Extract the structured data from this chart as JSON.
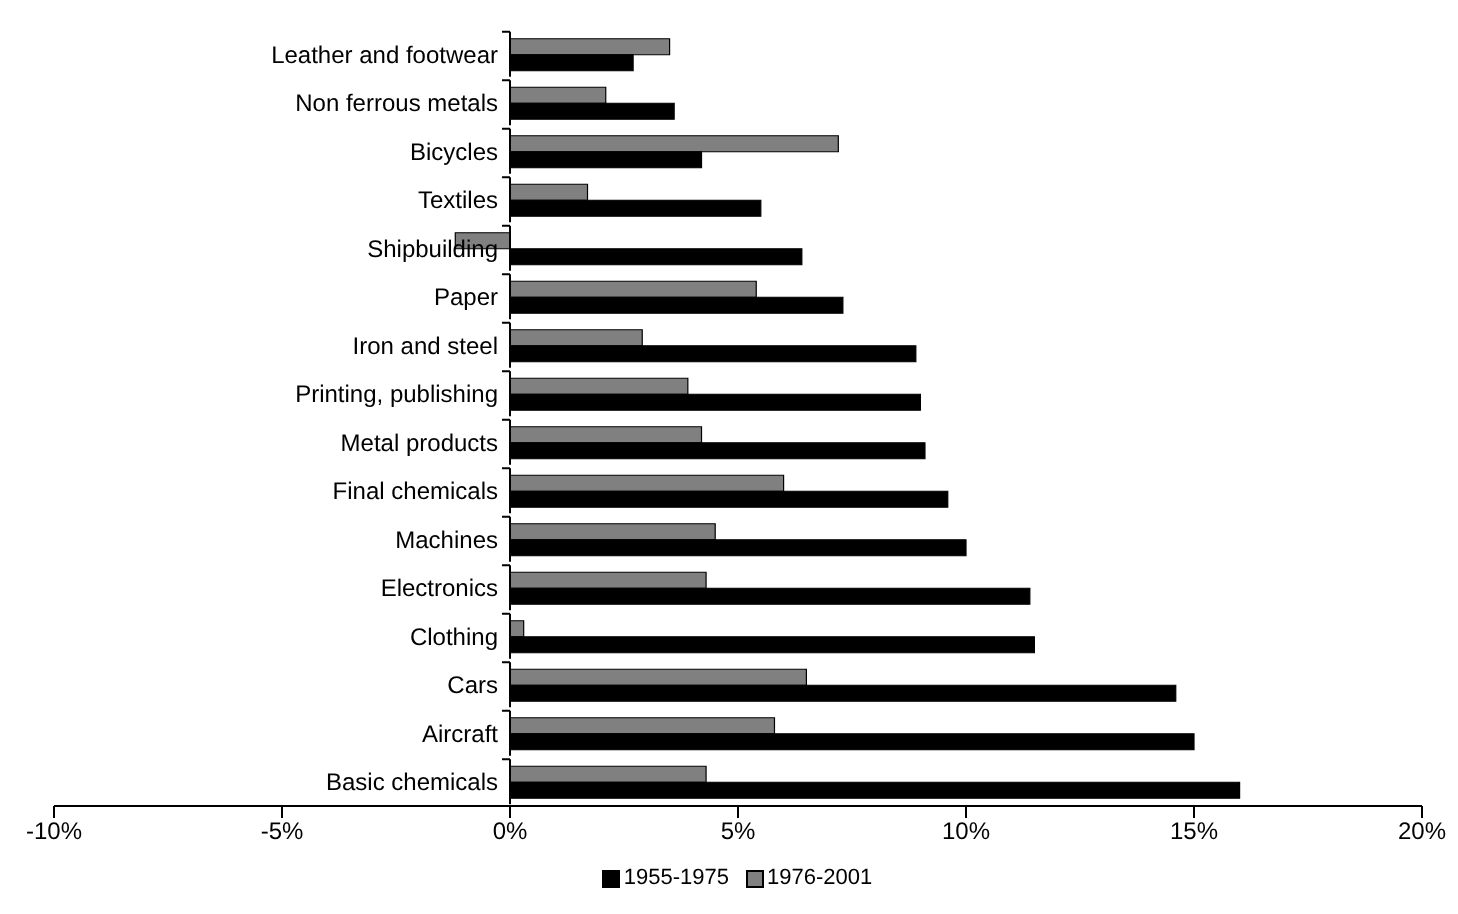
{
  "chart_data": {
    "type": "bar",
    "orientation": "horizontal",
    "categories": [
      "Leather and footwear",
      "Non ferrous metals",
      "Bicycles",
      "Textiles",
      "Shipbuilding",
      "Paper",
      "Iron and steel",
      "Printing, publishing",
      "Metal products",
      "Final chemicals",
      "Machines",
      "Electronics",
      "Clothing",
      "Cars",
      "Aircraft",
      "Basic chemicals"
    ],
    "series": [
      {
        "name": "1955-1975",
        "color": "#000000",
        "values": [
          2.7,
          3.6,
          4.2,
          5.5,
          6.4,
          7.3,
          8.9,
          9.0,
          9.1,
          9.6,
          10.0,
          11.4,
          11.5,
          14.6,
          15.0,
          16.0
        ]
      },
      {
        "name": "1976-2001",
        "color": "#808080",
        "values": [
          3.5,
          2.1,
          7.2,
          1.7,
          -1.2,
          5.4,
          2.9,
          3.9,
          4.2,
          6.0,
          4.5,
          4.3,
          0.3,
          6.5,
          5.8,
          4.3
        ]
      }
    ],
    "xlim": [
      -10,
      20
    ],
    "xticks": [
      {
        "value": -10,
        "label": "-10%"
      },
      {
        "value": -5,
        "label": "-5%"
      },
      {
        "value": 0,
        "label": "0%"
      },
      {
        "value": 5,
        "label": "5%"
      },
      {
        "value": 10,
        "label": "10%"
      },
      {
        "value": 15,
        "label": "15%"
      },
      {
        "value": 20,
        "label": "20%"
      }
    ],
    "grid": false,
    "legend": "bottom"
  }
}
